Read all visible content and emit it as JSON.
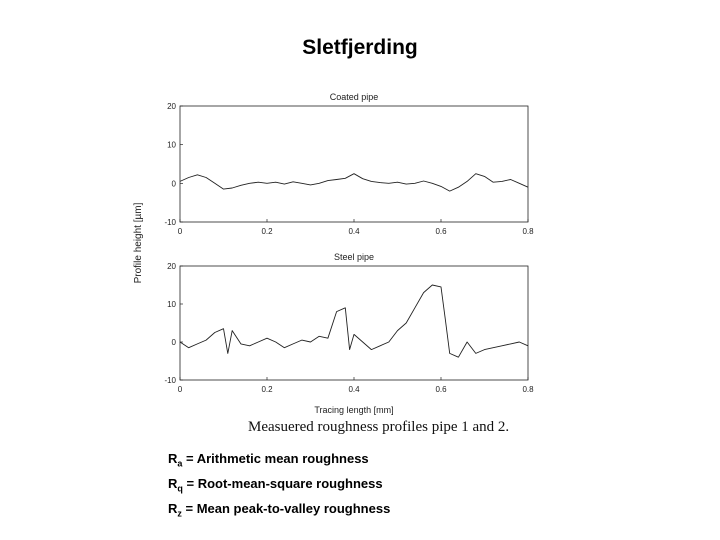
{
  "slide": {
    "title": "Sletfjerding",
    "caption": "Measuered roughness profiles pipe 1 and 2.",
    "definitions": [
      {
        "symbol": "R",
        "sub": "a",
        "text": " = Arithmetic mean roughness"
      },
      {
        "symbol": "R",
        "sub": "q",
        "text": " = Root-mean-square roughness"
      },
      {
        "symbol": "R",
        "sub": "z",
        "text": " = Mean peak-to-valley roughness"
      }
    ]
  },
  "chart_data": [
    {
      "type": "line",
      "title": "Coated pipe",
      "xlabel": "",
      "ylabel": "Profile height [µm]",
      "xlim": [
        0,
        0.8
      ],
      "ylim": [
        -10,
        20
      ],
      "xticks": [
        "0",
        "0.2",
        "0.4",
        "0.6",
        "0.8"
      ],
      "yticks": [
        "20",
        "10",
        "0",
        "-10"
      ],
      "grid": false,
      "series": [
        {
          "x": [
            0,
            0.02,
            0.04,
            0.06,
            0.08,
            0.1,
            0.12,
            0.14,
            0.16,
            0.18,
            0.2,
            0.22,
            0.24,
            0.26,
            0.28,
            0.3,
            0.32,
            0.34,
            0.36,
            0.38,
            0.4,
            0.42,
            0.44,
            0.46,
            0.48,
            0.5,
            0.52,
            0.54,
            0.56,
            0.58,
            0.6,
            0.62,
            0.64,
            0.66,
            0.68,
            0.7,
            0.72,
            0.74,
            0.76,
            0.78,
            0.8
          ],
          "values": [
            0.5,
            1.5,
            2.2,
            1.5,
            0,
            -1.5,
            -1.2,
            -0.5,
            0,
            0.3,
            0,
            0.3,
            -0.2,
            0.4,
            0,
            -0.4,
            0,
            0.7,
            1,
            1.3,
            2.5,
            1.2,
            0.5,
            0.2,
            0,
            0.3,
            -0.2,
            0,
            0.6,
            0,
            -0.8,
            -2,
            -1,
            0.5,
            2.5,
            1.8,
            0.3,
            0.5,
            1,
            0,
            -1
          ]
        }
      ]
    },
    {
      "type": "line",
      "title": "Steel pipe",
      "xlabel": "Tracing length [mm]",
      "ylabel": "Profile height [µm]",
      "xlim": [
        0,
        0.8
      ],
      "ylim": [
        -10,
        20
      ],
      "xticks": [
        "0",
        "0.2",
        "0.4",
        "0.6",
        "0.8"
      ],
      "yticks": [
        "20",
        "10",
        "0",
        "-10"
      ],
      "grid": false,
      "series": [
        {
          "x": [
            0,
            0.02,
            0.04,
            0.06,
            0.08,
            0.1,
            0.11,
            0.12,
            0.14,
            0.16,
            0.18,
            0.2,
            0.22,
            0.24,
            0.26,
            0.28,
            0.3,
            0.32,
            0.34,
            0.36,
            0.38,
            0.39,
            0.4,
            0.42,
            0.44,
            0.46,
            0.48,
            0.5,
            0.52,
            0.54,
            0.56,
            0.58,
            0.6,
            0.61,
            0.62,
            0.64,
            0.66,
            0.68,
            0.7,
            0.72,
            0.74,
            0.76,
            0.78,
            0.8
          ],
          "values": [
            0,
            -1.5,
            -0.5,
            0.5,
            2.5,
            3.5,
            -3,
            3,
            -0.5,
            -1,
            0,
            1,
            0,
            -1.5,
            -0.5,
            0.5,
            0,
            1.5,
            1,
            8,
            9,
            -2,
            2,
            0,
            -2,
            -1,
            0,
            3,
            5,
            9,
            13,
            15,
            14.5,
            6,
            -3,
            -4,
            0,
            -3,
            -2,
            -1.5,
            -1,
            -0.5,
            0,
            -1
          ]
        }
      ]
    }
  ]
}
